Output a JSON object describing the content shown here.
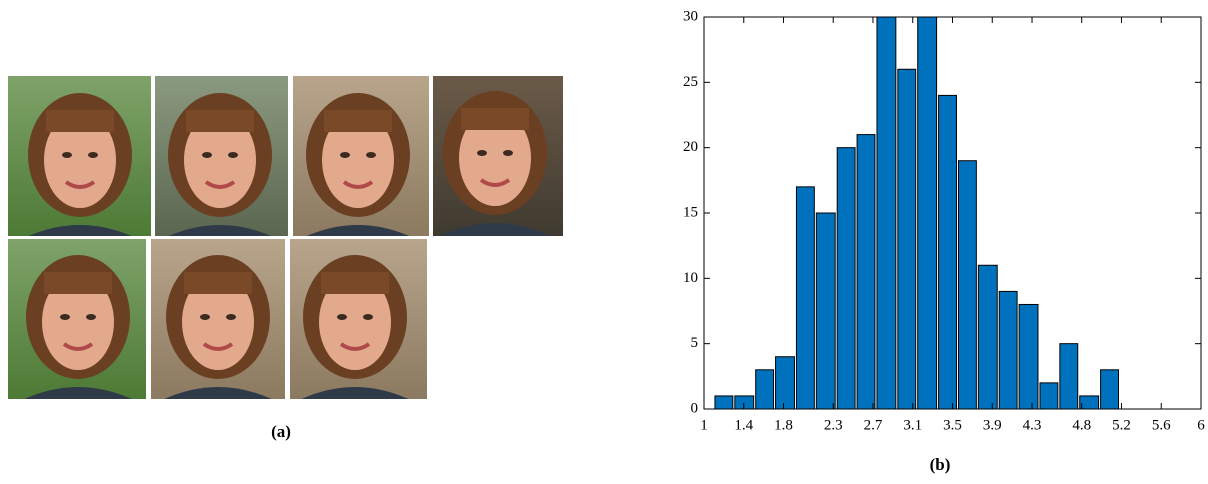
{
  "figure": {
    "panel_a": {
      "label": "(a)"
    },
    "panel_b": {
      "label": "(b)"
    }
  },
  "chart_data": {
    "type": "histogram",
    "bins": [
      1.1,
      1.3,
      1.51,
      1.71,
      1.92,
      2.12,
      2.33,
      2.53,
      2.73,
      2.94,
      3.14,
      3.35,
      3.55,
      3.75,
      3.96,
      4.16,
      4.37,
      4.57,
      4.77,
      4.98,
      5.18,
      5.39,
      5.59,
      5.79,
      6.0
    ],
    "values": [
      1,
      1,
      3,
      4,
      17,
      15,
      20,
      21,
      30,
      26,
      30,
      24,
      19,
      11,
      9,
      8,
      2,
      5,
      1,
      3,
      0,
      0,
      0,
      0
    ],
    "color": "#0072bd",
    "xlim": [
      1,
      6
    ],
    "xticks": [
      1,
      1.4,
      1.8,
      2.3,
      2.7,
      3.1,
      3.5,
      3.9,
      4.3,
      4.8,
      5.2,
      5.6,
      6
    ],
    "ylim": [
      0,
      30
    ],
    "yticks": [
      0,
      5,
      10,
      15,
      20,
      25,
      30
    ],
    "grid": false
  }
}
